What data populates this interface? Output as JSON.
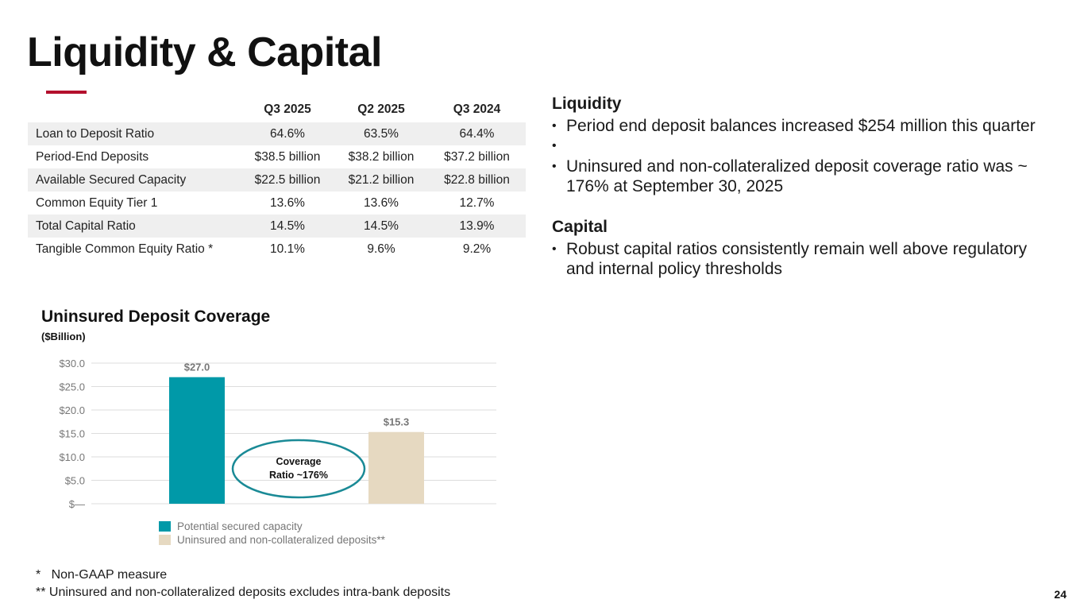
{
  "title": "Liquidity & Capital",
  "table": {
    "columns": [
      "",
      "Q3 2025",
      "Q2 2025",
      "Q3 2024"
    ],
    "rows": [
      {
        "label": "Loan to Deposit Ratio",
        "values": [
          "64.6%",
          "63.5%",
          "64.4%"
        ]
      },
      {
        "label": "Period-End Deposits",
        "values": [
          "$38.5 billion",
          "$38.2 billion",
          "$37.2 billion"
        ]
      },
      {
        "label": "Available Secured Capacity",
        "values": [
          "$22.5 billion",
          "$21.2 billion",
          "$22.8 billion"
        ]
      },
      {
        "label": "Common Equity Tier 1",
        "values": [
          "13.6%",
          "13.6%",
          "12.7%"
        ]
      },
      {
        "label": "Total Capital Ratio",
        "values": [
          "14.5%",
          "14.5%",
          "13.9%"
        ]
      },
      {
        "label": "Tangible Common Equity Ratio *",
        "values": [
          "10.1%",
          "9.6%",
          "9.2%"
        ]
      }
    ]
  },
  "liquidity": {
    "heading": "Liquidity",
    "bullets": [
      "Period end deposit balances increased $254 million this quarter",
      "Uninsured and non-collateralized deposit coverage ratio was ~ 176% at September 30, 2025"
    ]
  },
  "capital": {
    "heading": "Capital",
    "bullets": [
      "Robust capital ratios consistently remain well above regulatory and internal policy thresholds"
    ]
  },
  "chart_data": {
    "type": "bar",
    "title": "Uninsured Deposit Coverage",
    "subtitle": "($Billion)",
    "categories": [
      "Potential secured capacity",
      "Uninsured and non-collateralized deposits**"
    ],
    "values": [
      27.0,
      15.3
    ],
    "data_labels": [
      "$27.0",
      "$15.3"
    ],
    "colors": [
      "#0099a8",
      "#e6d9c1"
    ],
    "ylim": [
      0,
      30
    ],
    "yticks": [
      0,
      5,
      10,
      15,
      20,
      25,
      30
    ],
    "ytick_labels": [
      "$—",
      "$5.0",
      "$10.0",
      "$15.0",
      "$20.0",
      "$25.0",
      "$30.0"
    ],
    "grid": true,
    "legend": "bottom",
    "annotation": {
      "line1": "Coverage",
      "line2": "Ratio ~176%",
      "color": "#1a8a96"
    }
  },
  "footnotes": [
    "*   Non-GAAP measure",
    "** Uninsured and non-collateralized deposits excludes intra-bank deposits"
  ],
  "page_number": "24",
  "colors": {
    "accent": "#b3102d",
    "teal": "#0099a8",
    "tan": "#e6d9c1"
  }
}
